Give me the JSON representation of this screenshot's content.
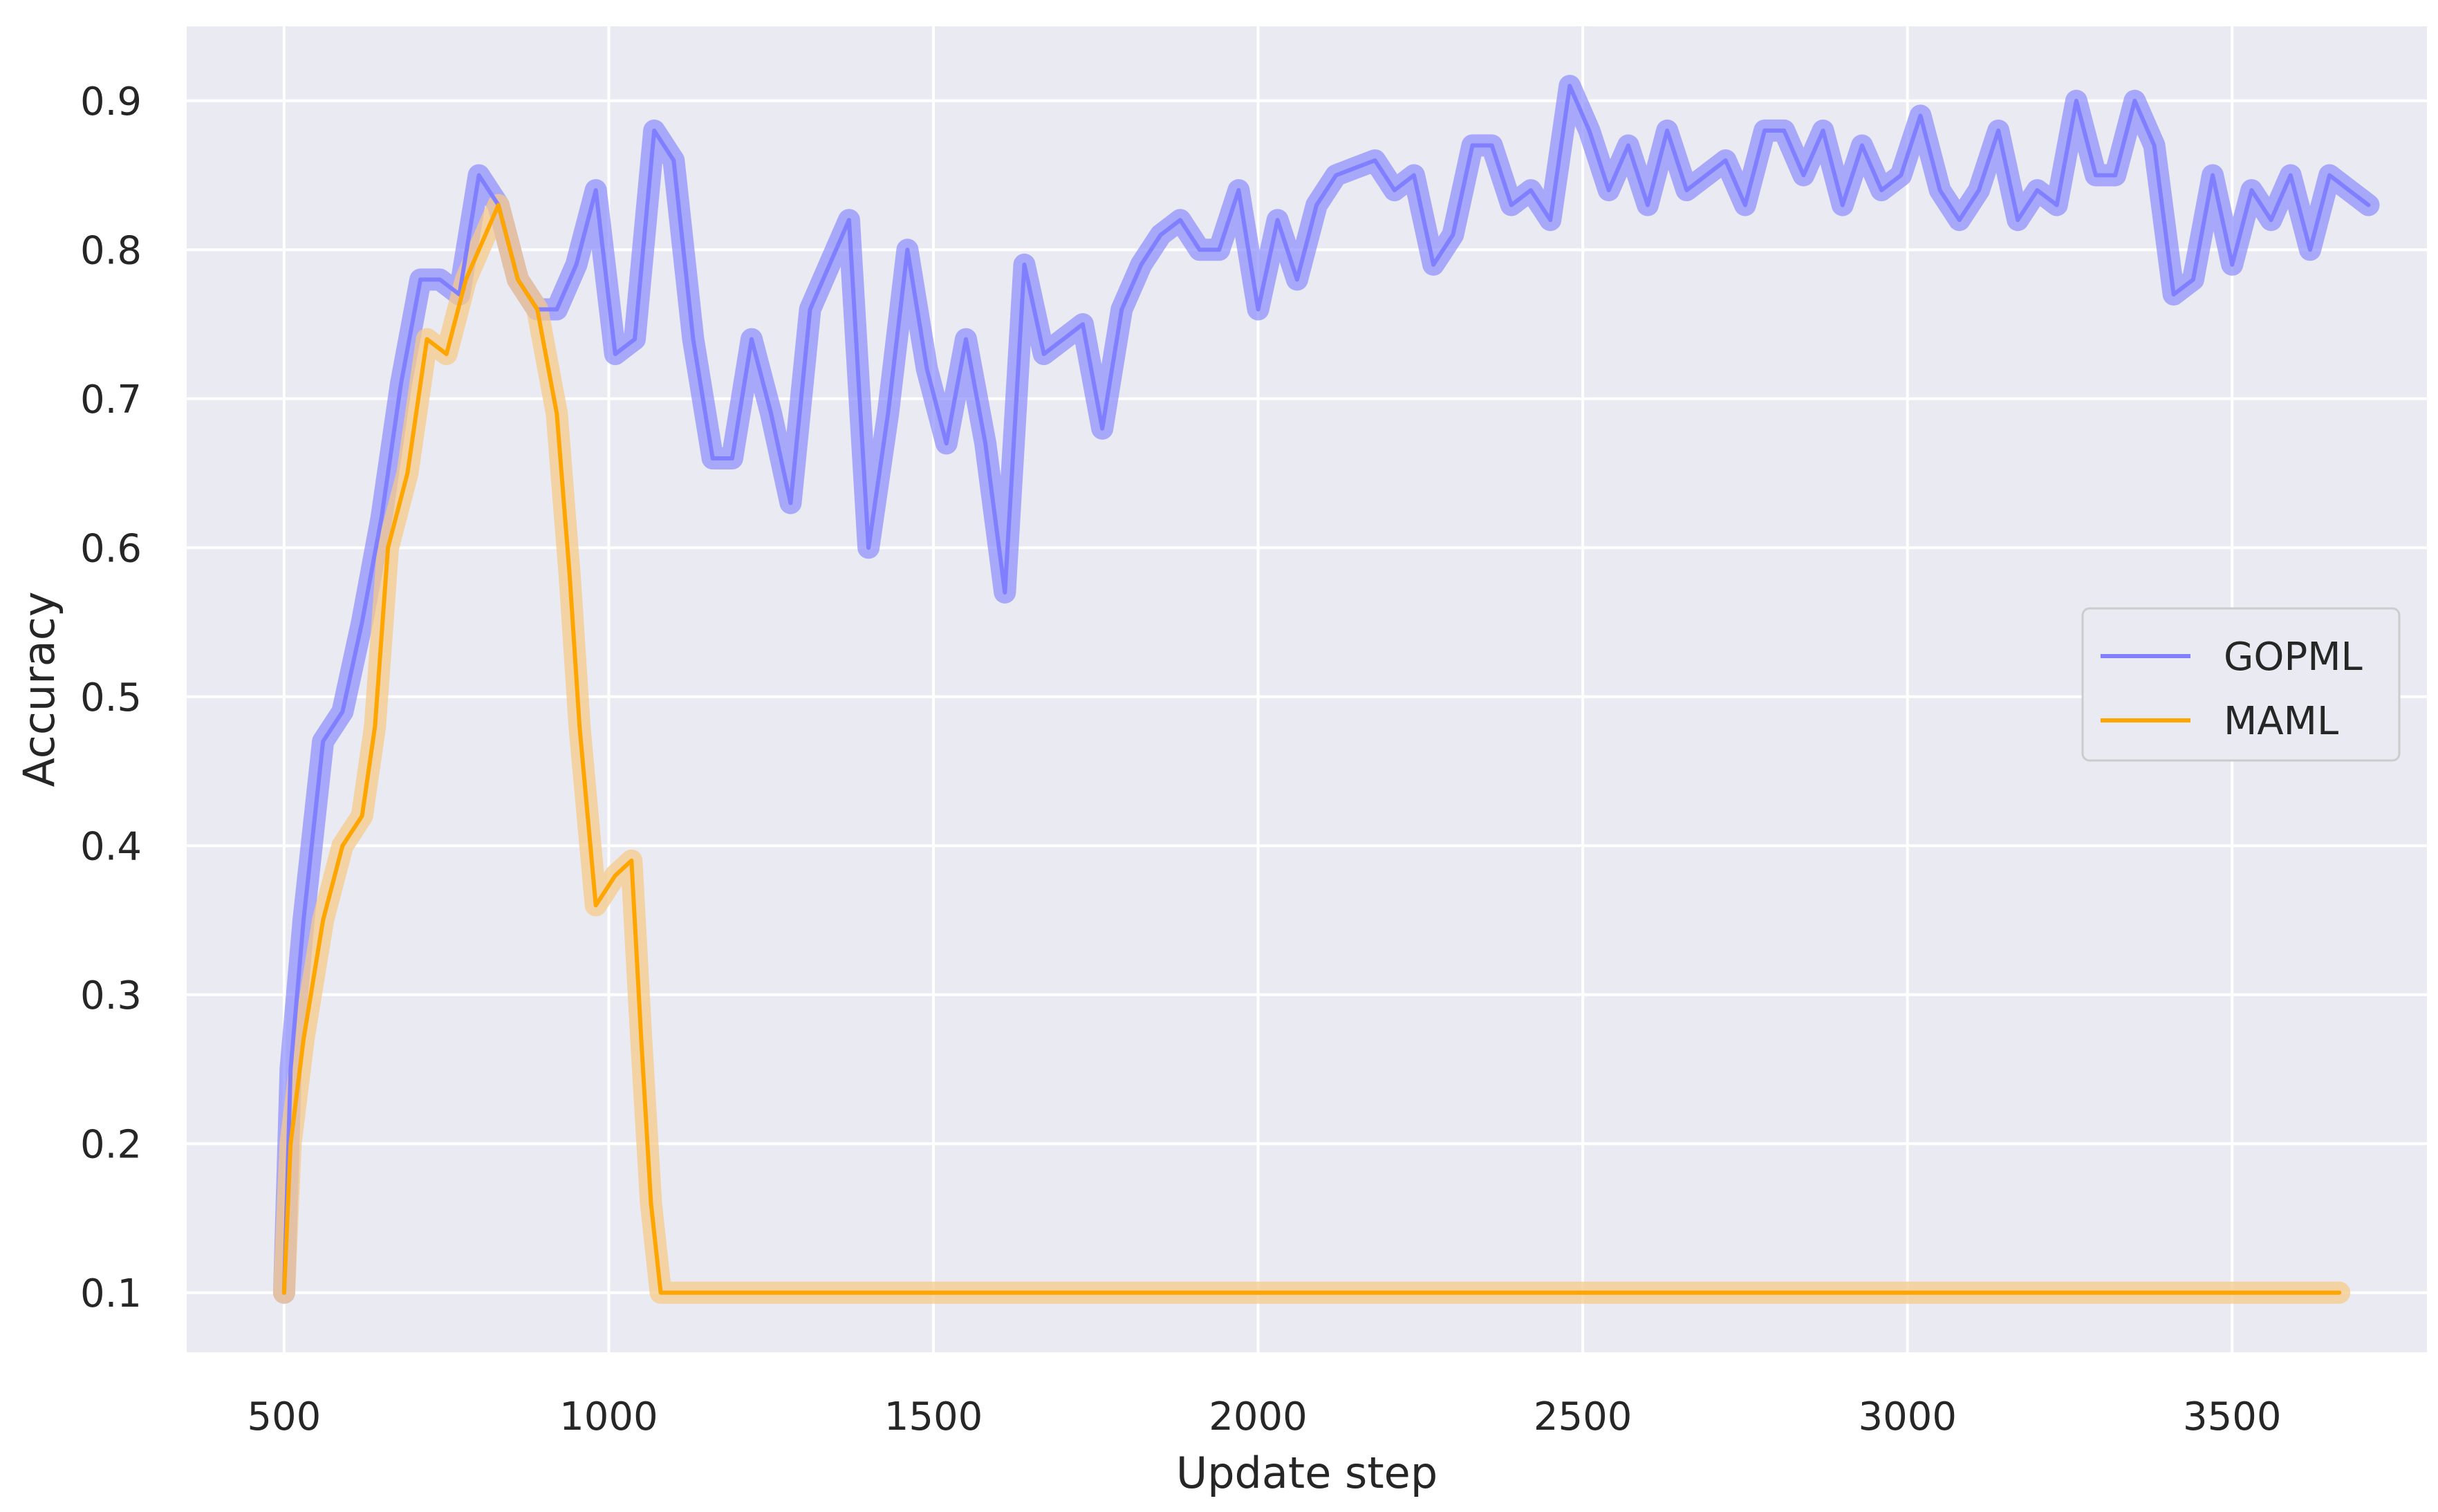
{
  "chart_data": {
    "type": "line",
    "title": "",
    "xlabel": "Update step",
    "ylabel": "Accuracy",
    "xlim": [
      350,
      3800
    ],
    "ylim": [
      0.06,
      0.95
    ],
    "xticks": [
      500,
      1000,
      1500,
      2000,
      2500,
      3000,
      3500
    ],
    "yticks": [
      0.1,
      0.2,
      0.3,
      0.4,
      0.5,
      0.6,
      0.7,
      0.8,
      0.9
    ],
    "grid": true,
    "legend": "center-right",
    "series": [
      {
        "name": "GOPML",
        "color": "#7f7fff",
        "band_color": "#8c8cff",
        "x": [
          500,
          510,
          530,
          560,
          590,
          620,
          650,
          680,
          710,
          740,
          770,
          800,
          830,
          860,
          890,
          920,
          950,
          980,
          1010,
          1040,
          1070,
          1100,
          1130,
          1160,
          1190,
          1220,
          1250,
          1280,
          1310,
          1340,
          1370,
          1400,
          1430,
          1460,
          1490,
          1520,
          1550,
          1580,
          1610,
          1640,
          1670,
          1700,
          1730,
          1760,
          1790,
          1820,
          1850,
          1880,
          1910,
          1940,
          1970,
          2000,
          2030,
          2060,
          2090,
          2120,
          2150,
          2180,
          2210,
          2240,
          2270,
          2300,
          2330,
          2360,
          2390,
          2420,
          2450,
          2480,
          2510,
          2540,
          2570,
          2600,
          2630,
          2660,
          2690,
          2720,
          2750,
          2780,
          2810,
          2840,
          2870,
          2900,
          2930,
          2960,
          2990,
          3020,
          3050,
          3080,
          3110,
          3140,
          3170,
          3200,
          3230,
          3260,
          3290,
          3320,
          3350,
          3380,
          3410,
          3440,
          3470,
          3500,
          3530,
          3560,
          3590,
          3620,
          3650,
          3680,
          3710
        ],
        "values": [
          0.1,
          0.25,
          0.35,
          0.47,
          0.49,
          0.55,
          0.62,
          0.71,
          0.78,
          0.78,
          0.77,
          0.85,
          0.83,
          0.78,
          0.76,
          0.76,
          0.79,
          0.84,
          0.73,
          0.74,
          0.88,
          0.86,
          0.74,
          0.66,
          0.66,
          0.74,
          0.69,
          0.63,
          0.76,
          0.79,
          0.82,
          0.6,
          0.69,
          0.8,
          0.72,
          0.67,
          0.74,
          0.67,
          0.57,
          0.79,
          0.73,
          0.74,
          0.75,
          0.68,
          0.76,
          0.79,
          0.81,
          0.82,
          0.8,
          0.8,
          0.84,
          0.76,
          0.82,
          0.78,
          0.83,
          0.85,
          0.855,
          0.86,
          0.84,
          0.85,
          0.79,
          0.81,
          0.87,
          0.87,
          0.83,
          0.84,
          0.82,
          0.91,
          0.88,
          0.84,
          0.87,
          0.83,
          0.88,
          0.84,
          0.85,
          0.86,
          0.83,
          0.88,
          0.88,
          0.85,
          0.88,
          0.83,
          0.87,
          0.84,
          0.85,
          0.89,
          0.84,
          0.82,
          0.84,
          0.88,
          0.82,
          0.84,
          0.83,
          0.9,
          0.85,
          0.85,
          0.9,
          0.87,
          0.77,
          0.78,
          0.85,
          0.79,
          0.84,
          0.82,
          0.85,
          0.8,
          0.85,
          0.84,
          0.83
        ]
      },
      {
        "name": "MAML",
        "color": "#ffa500",
        "band_color": "#f5c98a",
        "x": [
          500,
          510,
          530,
          560,
          590,
          620,
          640,
          660,
          690,
          720,
          750,
          780,
          800,
          830,
          860,
          890,
          920,
          940,
          955,
          980,
          1010,
          1035,
          1050,
          1065,
          1080,
          1200,
          1600,
          2000,
          2500,
          3000,
          3500,
          3665
        ],
        "values": [
          0.1,
          0.2,
          0.27,
          0.35,
          0.4,
          0.42,
          0.48,
          0.6,
          0.65,
          0.74,
          0.73,
          0.78,
          0.8,
          0.83,
          0.78,
          0.76,
          0.69,
          0.58,
          0.48,
          0.36,
          0.38,
          0.39,
          0.27,
          0.16,
          0.1,
          0.1,
          0.1,
          0.1,
          0.1,
          0.1,
          0.1,
          0.1
        ]
      }
    ]
  }
}
